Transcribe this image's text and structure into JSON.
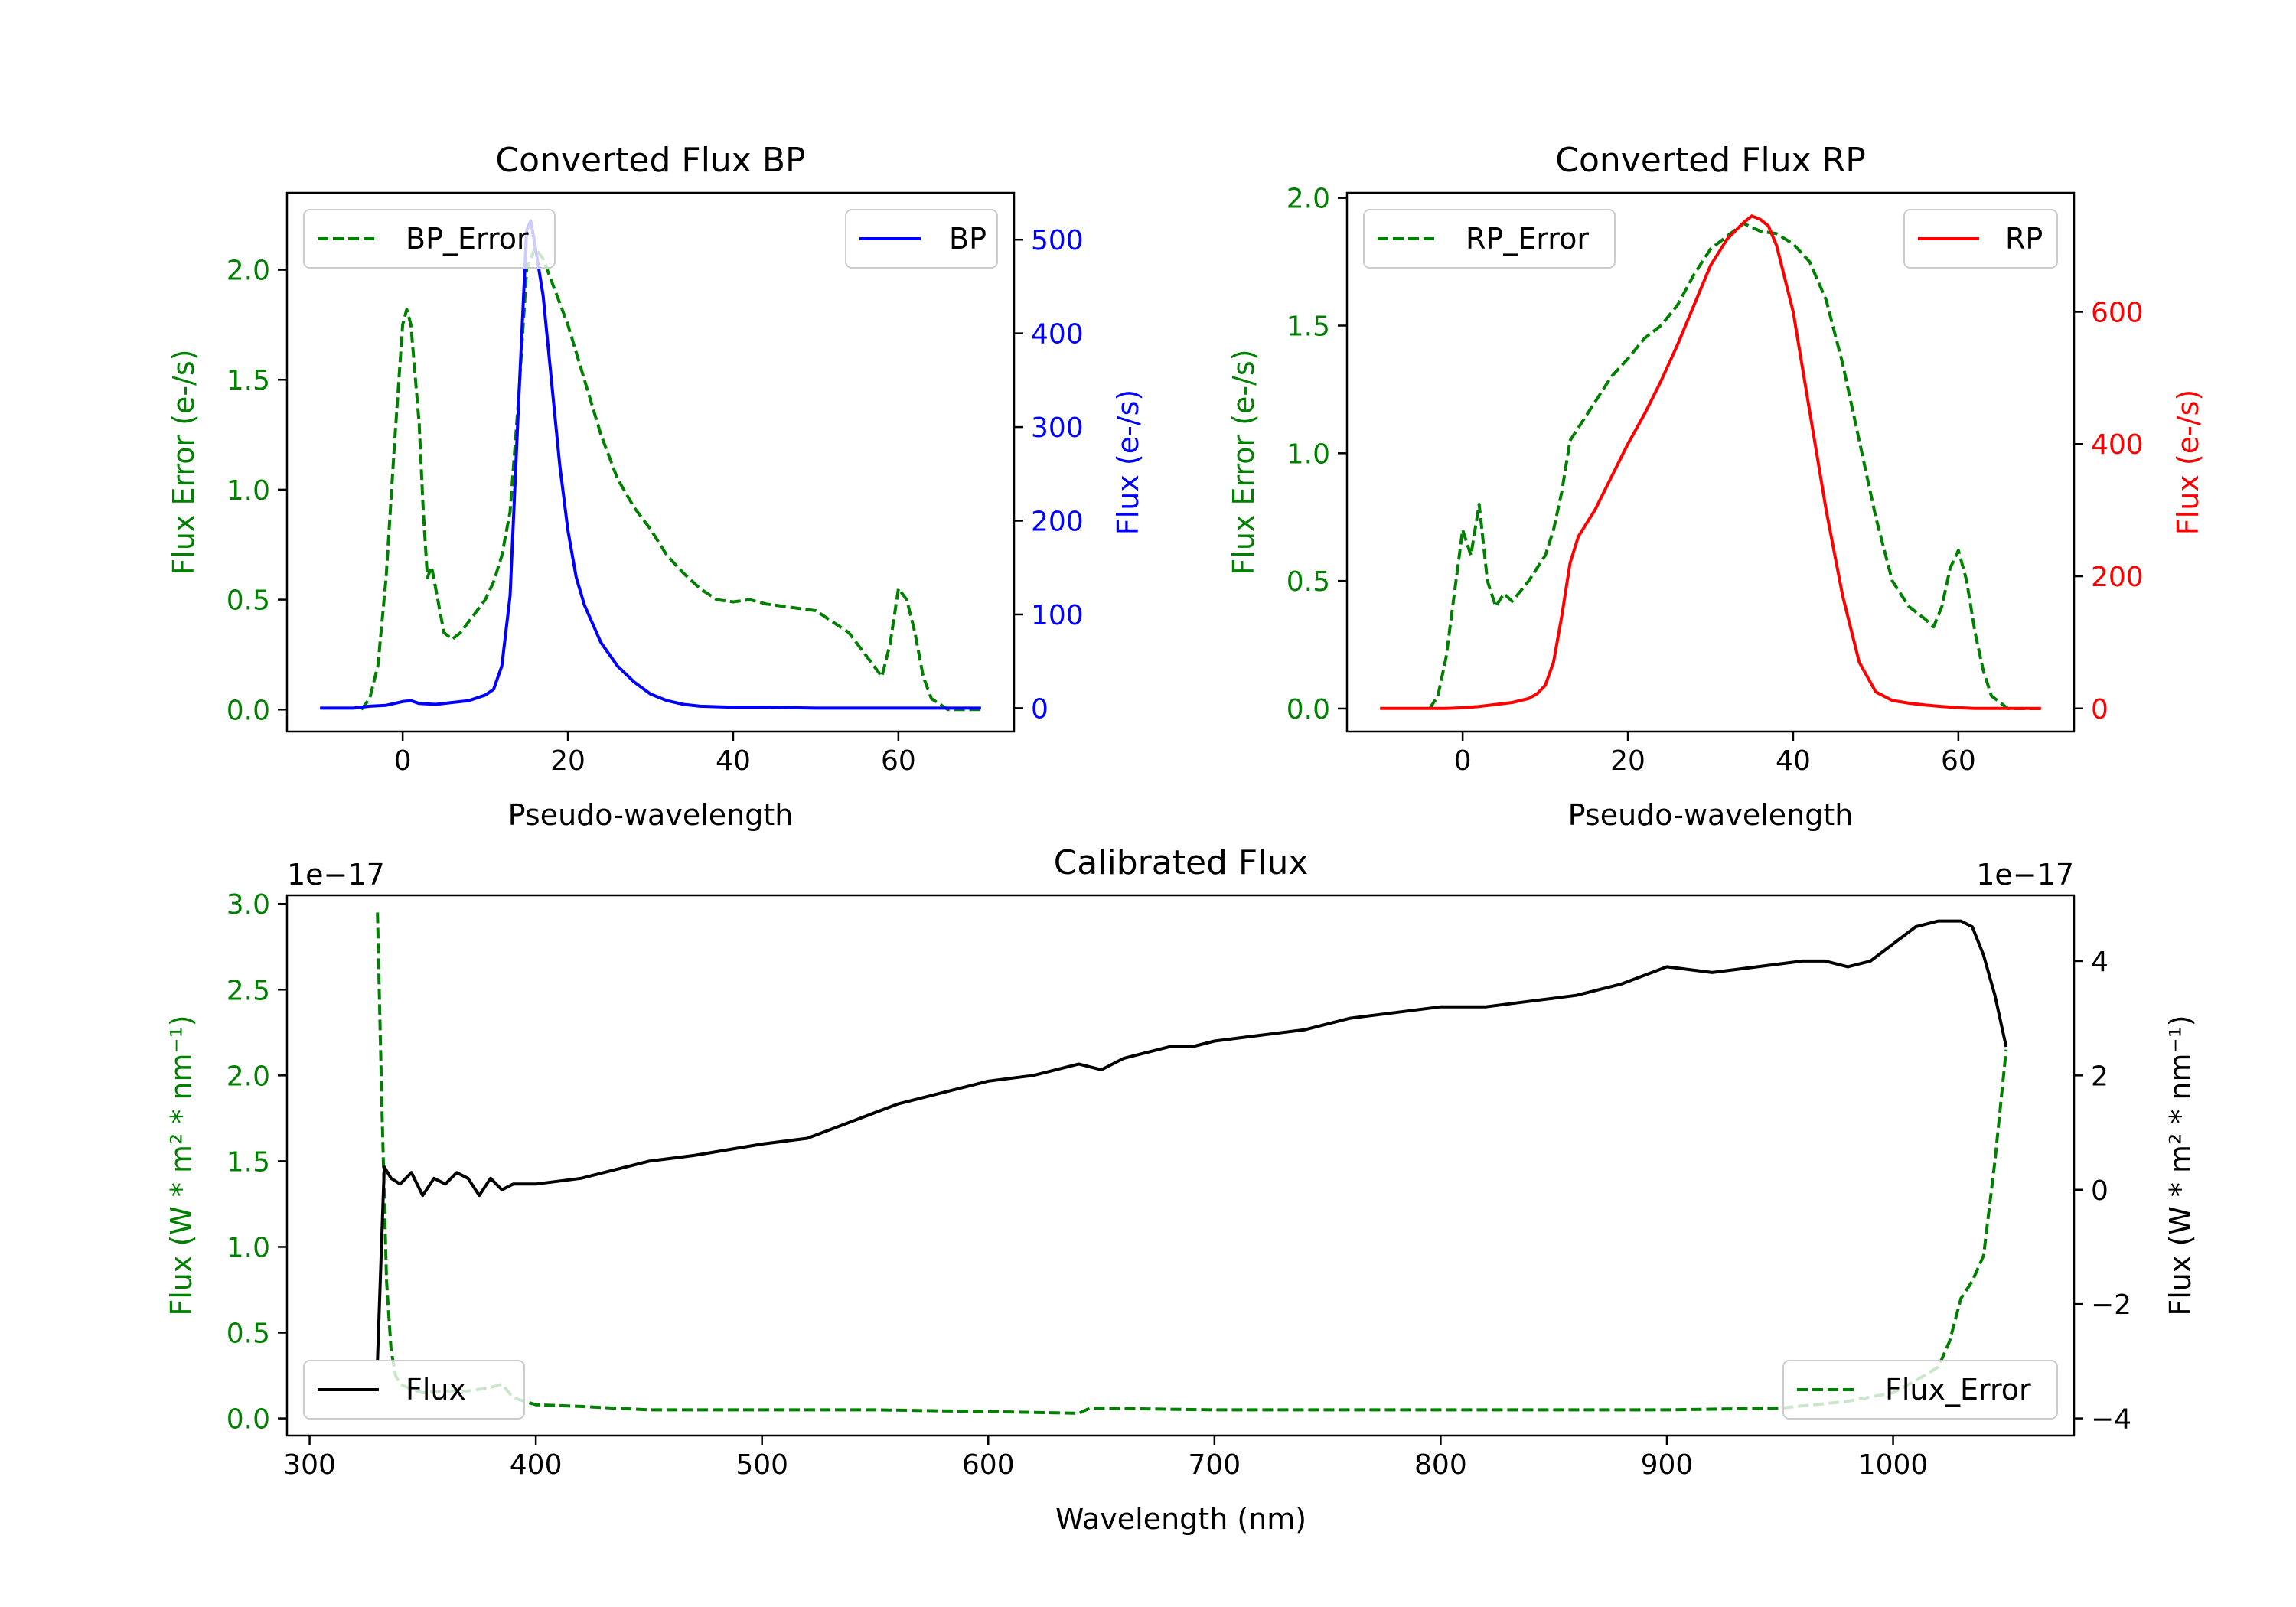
{
  "chart_data": [
    {
      "id": "bp",
      "type": "line",
      "title": "Converted Flux BP",
      "xlabel": "Pseudo-wavelength",
      "ylabel_left": "Flux Error (e-/s)",
      "ylabel_right": "Flux (e-/s)",
      "xlim": [
        -14,
        74
      ],
      "ylim_left": [
        -0.1,
        2.35
      ],
      "ylim_right": [
        -25,
        550
      ],
      "xticks": [
        0,
        20,
        40,
        60
      ],
      "yticks_left": [
        0.0,
        0.5,
        1.0,
        1.5,
        2.0
      ],
      "yticks_left_labels": [
        "0.0",
        "0.5",
        "1.0",
        "1.5",
        "2.0"
      ],
      "yticks_right": [
        0,
        100,
        200,
        300,
        400,
        500
      ],
      "yticks_right_labels": [
        "0",
        "100",
        "200",
        "300",
        "400",
        "500"
      ],
      "left_color": "#008000",
      "right_color": "#0000ff",
      "series": [
        {
          "name": "BP_Error",
          "axis": "left",
          "style": "dashed",
          "color": "#008000",
          "x": [
            -5,
            -4,
            -3,
            -2,
            -1,
            0,
            0.5,
            1,
            2,
            2.5,
            3,
            3.5,
            4,
            5,
            6,
            7,
            8,
            9,
            10,
            11,
            12,
            13,
            14,
            15,
            16,
            17,
            18,
            19,
            20,
            22,
            24,
            26,
            28,
            30,
            32,
            34,
            36,
            38,
            40,
            42,
            44,
            46,
            48,
            50,
            52,
            54,
            56,
            57,
            58,
            59,
            60,
            61,
            62,
            63,
            64,
            66,
            68,
            70
          ],
          "y": [
            0,
            0.05,
            0.2,
            0.6,
            1.2,
            1.75,
            1.82,
            1.75,
            1.3,
            0.9,
            0.6,
            0.65,
            0.55,
            0.35,
            0.32,
            0.35,
            0.4,
            0.45,
            0.5,
            0.58,
            0.7,
            0.9,
            1.4,
            2.0,
            2.1,
            2.05,
            1.95,
            1.85,
            1.75,
            1.5,
            1.25,
            1.05,
            0.92,
            0.82,
            0.7,
            0.62,
            0.55,
            0.5,
            0.49,
            0.5,
            0.48,
            0.47,
            0.46,
            0.45,
            0.4,
            0.35,
            0.25,
            0.2,
            0.15,
            0.3,
            0.55,
            0.5,
            0.35,
            0.15,
            0.05,
            0,
            0,
            0
          ]
        },
        {
          "name": "BP",
          "axis": "right",
          "style": "solid",
          "color": "#0000ff",
          "x": [
            -10,
            -6,
            -4,
            -2,
            0,
            1,
            2,
            4,
            6,
            8,
            10,
            11,
            12,
            13,
            14,
            15,
            15.5,
            16,
            17,
            18,
            19,
            20,
            21,
            22,
            24,
            26,
            28,
            30,
            32,
            34,
            36,
            40,
            44,
            50,
            56,
            60,
            64,
            70
          ],
          "y": [
            0,
            0,
            2,
            3,
            7,
            8,
            5,
            4,
            6,
            8,
            14,
            20,
            45,
            120,
            320,
            510,
            520,
            495,
            440,
            350,
            260,
            190,
            140,
            110,
            70,
            45,
            28,
            15,
            8,
            4,
            2,
            1,
            1,
            0,
            0,
            0,
            0,
            0
          ]
        }
      ],
      "legend": [
        {
          "label": "BP_Error",
          "position": "upper left"
        },
        {
          "label": "BP",
          "position": "upper right"
        }
      ]
    },
    {
      "id": "rp",
      "type": "line",
      "title": "Converted Flux RP",
      "xlabel": "Pseudo-wavelength",
      "ylabel_left": "Flux Error (e-/s)",
      "ylabel_right": "Flux (e-/s)",
      "xlim": [
        -14,
        74
      ],
      "ylim_left": [
        -0.09,
        2.02
      ],
      "ylim_right": [
        -35,
        780
      ],
      "xticks": [
        0,
        20,
        40,
        60
      ],
      "yticks_left": [
        0.0,
        0.5,
        1.0,
        1.5,
        2.0
      ],
      "yticks_left_labels": [
        "0.0",
        "0.5",
        "1.0",
        "1.5",
        "2.0"
      ],
      "yticks_right": [
        0,
        200,
        400,
        600
      ],
      "yticks_right_labels": [
        "0",
        "200",
        "400",
        "600"
      ],
      "left_color": "#008000",
      "right_color": "#ff0000",
      "series": [
        {
          "name": "RP_Error",
          "axis": "left",
          "style": "dashed",
          "color": "#008000",
          "x": [
            -4,
            -3,
            -2,
            -1,
            0,
            1,
            2,
            3,
            4,
            5,
            6,
            8,
            10,
            11,
            12,
            13,
            14,
            16,
            18,
            20,
            22,
            24,
            26,
            28,
            30,
            32,
            34,
            36,
            38,
            40,
            42,
            44,
            46,
            48,
            50,
            52,
            54,
            56,
            57,
            58,
            59,
            60,
            61,
            62,
            63,
            64,
            66,
            70
          ],
          "y": [
            0,
            0.05,
            0.2,
            0.45,
            0.7,
            0.6,
            0.8,
            0.5,
            0.4,
            0.45,
            0.42,
            0.5,
            0.6,
            0.7,
            0.85,
            1.05,
            1.1,
            1.2,
            1.3,
            1.37,
            1.45,
            1.5,
            1.58,
            1.7,
            1.8,
            1.85,
            1.9,
            1.87,
            1.86,
            1.82,
            1.75,
            1.6,
            1.35,
            1.05,
            0.75,
            0.5,
            0.4,
            0.35,
            0.32,
            0.4,
            0.55,
            0.62,
            0.5,
            0.3,
            0.15,
            0.05,
            0,
            0
          ]
        },
        {
          "name": "RP",
          "axis": "right",
          "style": "solid",
          "color": "#ff0000",
          "x": [
            -10,
            -6,
            -2,
            0,
            2,
            4,
            6,
            8,
            9,
            10,
            11,
            12,
            13,
            14,
            16,
            18,
            20,
            22,
            24,
            26,
            28,
            30,
            32,
            34,
            35,
            36,
            37,
            38,
            40,
            42,
            44,
            46,
            48,
            50,
            52,
            54,
            56,
            58,
            60,
            62,
            64,
            66,
            70
          ],
          "y": [
            0,
            0,
            0,
            1,
            3,
            6,
            9,
            15,
            22,
            35,
            70,
            140,
            220,
            260,
            300,
            350,
            400,
            445,
            495,
            550,
            610,
            670,
            710,
            735,
            745,
            740,
            730,
            700,
            600,
            450,
            300,
            170,
            70,
            25,
            12,
            8,
            5,
            3,
            1,
            0,
            0,
            0,
            0
          ]
        }
      ],
      "legend": [
        {
          "label": "RP_Error",
          "position": "upper left"
        },
        {
          "label": "RP",
          "position": "upper right"
        }
      ]
    },
    {
      "id": "calibrated",
      "type": "line",
      "title": "Calibrated Flux",
      "xlabel": "Wavelength (nm)",
      "ylabel_left": "Flux (W * m² * nm⁻¹)",
      "ylabel_right": "Flux (W * m² * nm⁻¹)",
      "offset_left": "1e−17",
      "offset_right": "1e−17",
      "xlim": [
        290,
        1080
      ],
      "ylim_left": [
        -0.1,
        3.05
      ],
      "ylim_right": [
        -4.3,
        5.15
      ],
      "xticks": [
        300,
        400,
        500,
        600,
        700,
        800,
        900,
        1000
      ],
      "yticks_left": [
        0.0,
        0.5,
        1.0,
        1.5,
        2.0,
        2.5,
        3.0
      ],
      "yticks_left_labels": [
        "0.0",
        "0.5",
        "1.0",
        "1.5",
        "2.0",
        "2.5",
        "3.0"
      ],
      "yticks_right": [
        -4,
        -2,
        0,
        2,
        4
      ],
      "yticks_right_labels": [
        "−4",
        "−2",
        "0",
        "2",
        "4"
      ],
      "left_color": "#008000",
      "right_color": "#000000",
      "series": [
        {
          "name": "Flux_Error",
          "axis": "left",
          "style": "dashed",
          "color": "#008000",
          "x": [
            330,
            332,
            334,
            336,
            338,
            340,
            345,
            350,
            360,
            370,
            380,
            385,
            390,
            400,
            420,
            450,
            500,
            550,
            600,
            640,
            645,
            700,
            800,
            900,
            950,
            980,
            1000,
            1010,
            1020,
            1025,
            1030,
            1035,
            1040,
            1045,
            1050
          ],
          "y": [
            2.95,
            1.8,
            0.8,
            0.4,
            0.25,
            0.2,
            0.17,
            0.15,
            0.16,
            0.16,
            0.18,
            0.2,
            0.12,
            0.08,
            0.07,
            0.05,
            0.05,
            0.05,
            0.04,
            0.03,
            0.06,
            0.05,
            0.05,
            0.05,
            0.06,
            0.1,
            0.15,
            0.22,
            0.3,
            0.45,
            0.7,
            0.8,
            0.95,
            1.5,
            2.15
          ]
        },
        {
          "name": "Flux",
          "axis": "right",
          "style": "solid",
          "color": "#000000",
          "x": [
            330,
            333,
            336,
            340,
            345,
            350,
            355,
            360,
            365,
            370,
            375,
            380,
            385,
            390,
            400,
            420,
            450,
            470,
            500,
            520,
            540,
            560,
            580,
            600,
            620,
            640,
            650,
            660,
            670,
            680,
            690,
            700,
            720,
            740,
            760,
            780,
            800,
            820,
            840,
            860,
            880,
            900,
            920,
            940,
            960,
            970,
            980,
            990,
            1000,
            1010,
            1020,
            1030,
            1035,
            1040,
            1045,
            1050
          ],
          "y": [
            -3,
            0.4,
            0.2,
            0.1,
            0.3,
            -0.1,
            0.2,
            0.1,
            0.3,
            0.2,
            -0.1,
            0.2,
            0.0,
            0.1,
            0.1,
            0.2,
            0.5,
            0.6,
            0.8,
            0.9,
            1.2,
            1.5,
            1.7,
            1.9,
            2.0,
            2.2,
            2.1,
            2.3,
            2.4,
            2.5,
            2.5,
            2.6,
            2.7,
            2.8,
            3.0,
            3.1,
            3.2,
            3.2,
            3.3,
            3.4,
            3.6,
            3.9,
            3.8,
            3.9,
            4.0,
            4.0,
            3.9,
            4.0,
            4.3,
            4.6,
            4.7,
            4.7,
            4.6,
            4.1,
            3.4,
            2.5
          ]
        }
      ],
      "legend": [
        {
          "label": "Flux",
          "position": "lower left"
        },
        {
          "label": "Flux_Error",
          "position": "lower right"
        }
      ]
    }
  ]
}
